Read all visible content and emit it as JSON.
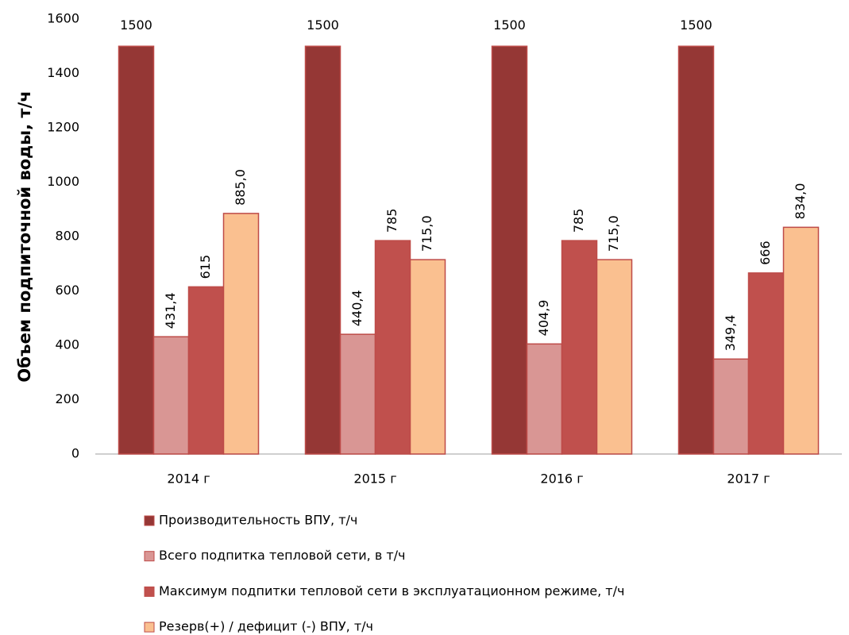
{
  "chart_data": {
    "type": "bar",
    "y_label": "Объем подпиточной воды, т/ч",
    "categories": [
      "2014 г",
      "2015 г",
      "2016 г",
      "2017 г"
    ],
    "series": [
      {
        "name": "Производительность ВПУ, т/ч",
        "color": "#953735",
        "values": [
          1500,
          1500,
          1500,
          1500
        ]
      },
      {
        "name": "Всего подпитка тепловой сети, в т/ч",
        "color": "#d99694",
        "values": [
          431.4,
          440.4,
          404.9,
          349.4
        ],
        "value_labels": [
          "431,4",
          "440,4",
          "404,9",
          "349,4"
        ]
      },
      {
        "name": "Максимум подпитки тепловой сети в эксплуатационном режиме, т/ч",
        "color": "#c0504d",
        "values": [
          615,
          785,
          785,
          666
        ]
      },
      {
        "name": "Резерв(+) / дефицит (-) ВПУ, т/ч",
        "color": "#fac090",
        "values": [
          885.0,
          715.0,
          715.0,
          834.0
        ],
        "value_labels": [
          "885,0",
          "715,0",
          "715,0",
          "834,0"
        ]
      }
    ],
    "ylim": [
      0,
      1600
    ],
    "yticks": [
      0,
      200,
      400,
      600,
      800,
      1000,
      1200,
      1400,
      1600
    ],
    "legend": "bottom"
  }
}
